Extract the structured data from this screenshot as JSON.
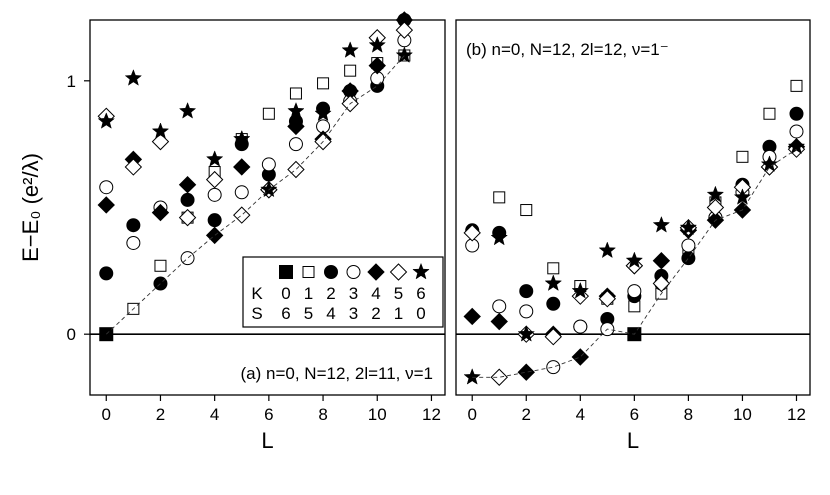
{
  "chart_data": [
    {
      "type": "scatter",
      "panel_label": "(a) n=0, N=12, 2l=11, ν=1",
      "xlabel": "L",
      "ylabel": "E−E₀ (e²/λ)",
      "xlim": [
        -0.6,
        12.5
      ],
      "ylim": [
        -0.24,
        1.24
      ],
      "xticks": [
        "0",
        "2",
        "4",
        "6",
        "8",
        "10",
        "12"
      ],
      "yticks": [
        "0",
        "1"
      ],
      "legend": {
        "placement": "lower-right",
        "K_label": "K",
        "S_label": "S",
        "K_values": [
          "0",
          "1",
          "2",
          "3",
          "4",
          "5",
          "6"
        ],
        "S_values": [
          "6",
          "5",
          "4",
          "3",
          "2",
          "1",
          "0"
        ]
      },
      "series": [
        {
          "marker": "filled-square",
          "K": 0,
          "points": [
            [
              0,
              0.0
            ]
          ]
        },
        {
          "marker": "open-square",
          "K": 1,
          "points": [
            [
              1,
              0.1
            ],
            [
              2,
              0.27
            ],
            [
              3,
              0.46
            ],
            [
              4,
              0.64
            ],
            [
              5,
              0.77
            ],
            [
              6,
              0.87
            ],
            [
              7,
              0.95
            ],
            [
              8,
              0.99
            ],
            [
              9,
              1.04
            ],
            [
              10,
              1.07
            ],
            [
              11,
              1.1
            ]
          ]
        },
        {
          "marker": "filled-circle",
          "K": 2,
          "points": [
            [
              0,
              0.24
            ],
            [
              1,
              0.43
            ],
            [
              2,
              0.2
            ],
            [
              3,
              0.53
            ],
            [
              4,
              0.45
            ],
            [
              5,
              0.75
            ],
            [
              6,
              0.63
            ],
            [
              7,
              0.84
            ],
            [
              8,
              0.89
            ],
            [
              9,
              0.96
            ],
            [
              10,
              0.98
            ],
            [
              11,
              1.24
            ]
          ]
        },
        {
          "marker": "open-circle",
          "K": 3,
          "points": [
            [
              0,
              0.58
            ],
            [
              1,
              0.36
            ],
            [
              2,
              0.5
            ],
            [
              3,
              0.3
            ],
            [
              4,
              0.55
            ],
            [
              5,
              0.56
            ],
            [
              6,
              0.67
            ],
            [
              7,
              0.75
            ],
            [
              8,
              0.82
            ],
            [
              9,
              0.92
            ],
            [
              10,
              1.01
            ],
            [
              11,
              1.16
            ]
          ]
        },
        {
          "marker": "filled-diamond",
          "K": 4,
          "points": [
            [
              0,
              0.51
            ],
            [
              1,
              0.69
            ],
            [
              2,
              0.48
            ],
            [
              3,
              0.59
            ],
            [
              4,
              0.39
            ],
            [
              5,
              0.66
            ],
            [
              6,
              0.57
            ],
            [
              7,
              0.82
            ],
            [
              8,
              0.77
            ],
            [
              9,
              0.96
            ],
            [
              10,
              1.06
            ],
            [
              11,
              1.24
            ]
          ]
        },
        {
          "marker": "open-diamond",
          "K": 5,
          "points": [
            [
              0,
              0.86
            ],
            [
              1,
              0.66
            ],
            [
              2,
              0.76
            ],
            [
              3,
              0.46
            ],
            [
              4,
              0.61
            ],
            [
              5,
              0.47
            ],
            [
              6,
              0.57
            ],
            [
              7,
              0.65
            ],
            [
              8,
              0.76
            ],
            [
              9,
              0.91
            ],
            [
              10,
              1.17
            ],
            [
              11,
              1.2
            ]
          ]
        },
        {
          "marker": "star",
          "K": 6,
          "points": [
            [
              0,
              0.84
            ],
            [
              1,
              1.01
            ],
            [
              2,
              0.8
            ],
            [
              3,
              0.88
            ],
            [
              4,
              0.69
            ],
            [
              5,
              0.77
            ],
            [
              6,
              0.57
            ],
            [
              7,
              0.88
            ],
            [
              8,
              0.87
            ],
            [
              9,
              1.12
            ],
            [
              10,
              1.14
            ],
            [
              11,
              1.1
            ]
          ]
        }
      ]
    },
    {
      "type": "scatter",
      "panel_label": "(b) n=0, N=12, 2l=12, ν=1⁻",
      "xlabel": "L",
      "xlim": [
        -0.6,
        12.5
      ],
      "ylim": [
        -0.24,
        1.24
      ],
      "xticks": [
        "0",
        "2",
        "4",
        "6",
        "8",
        "10",
        "12"
      ],
      "series": [
        {
          "marker": "filled-square",
          "K": 0,
          "points": [
            [
              6,
              0.0
            ]
          ]
        },
        {
          "marker": "open-square",
          "K": 1,
          "points": [
            [
              1,
              0.54
            ],
            [
              2,
              0.49
            ],
            [
              3,
              0.26
            ],
            [
              4,
              0.19
            ],
            [
              5,
              0.14
            ],
            [
              6,
              0.11
            ],
            [
              7,
              0.16
            ],
            [
              8,
              0.33
            ],
            [
              9,
              0.52
            ],
            [
              10,
              0.7
            ],
            [
              11,
              0.87
            ],
            [
              12,
              0.98
            ]
          ]
        },
        {
          "marker": "filled-circle",
          "K": 2,
          "points": [
            [
              0,
              0.41
            ],
            [
              1,
              0.4
            ],
            [
              2,
              0.17
            ],
            [
              3,
              0.12
            ],
            [
              4,
              0.03
            ],
            [
              5,
              0.06
            ],
            [
              6,
              0.15
            ],
            [
              7,
              0.23
            ],
            [
              8,
              0.3
            ],
            [
              9,
              0.46
            ],
            [
              10,
              0.59
            ],
            [
              11,
              0.74
            ],
            [
              12,
              0.87
            ]
          ]
        },
        {
          "marker": "open-circle",
          "K": 3,
          "points": [
            [
              0,
              0.35
            ],
            [
              1,
              0.11
            ],
            [
              2,
              0.09
            ],
            [
              3,
              -0.13
            ],
            [
              4,
              0.03
            ],
            [
              5,
              0.02
            ],
            [
              6,
              0.17
            ],
            [
              7,
              0.2
            ],
            [
              8,
              0.35
            ],
            [
              9,
              0.46
            ],
            [
              10,
              0.56
            ],
            [
              11,
              0.7
            ],
            [
              12,
              0.8
            ]
          ]
        },
        {
          "marker": "filled-diamond",
          "K": 4,
          "points": [
            [
              0,
              0.07
            ],
            [
              1,
              0.05
            ],
            [
              2,
              -0.15
            ],
            [
              3,
              0.0
            ],
            [
              4,
              -0.09
            ],
            [
              5,
              0.15
            ],
            [
              6,
              0.27
            ],
            [
              7,
              0.29
            ],
            [
              8,
              0.41
            ],
            [
              9,
              0.45
            ],
            [
              10,
              0.49
            ],
            [
              11,
              0.66
            ],
            [
              12,
              0.74
            ]
          ]
        },
        {
          "marker": "open-diamond",
          "K": 5,
          "points": [
            [
              0,
              0.4
            ],
            [
              1,
              -0.17
            ],
            [
              2,
              0.0
            ],
            [
              3,
              -0.01
            ],
            [
              4,
              0.15
            ],
            [
              5,
              0.14
            ],
            [
              6,
              0.27
            ],
            [
              7,
              0.2
            ],
            [
              8,
              0.42
            ],
            [
              9,
              0.5
            ],
            [
              10,
              0.58
            ],
            [
              11,
              0.66
            ],
            [
              12,
              0.73
            ]
          ]
        },
        {
          "marker": "star",
          "K": 6,
          "points": [
            [
              0,
              -0.17
            ],
            [
              1,
              0.38
            ],
            [
              2,
              0.0
            ],
            [
              3,
              0.2
            ],
            [
              4,
              0.17
            ],
            [
              5,
              0.33
            ],
            [
              6,
              0.29
            ],
            [
              7,
              0.43
            ],
            [
              8,
              0.42
            ],
            [
              9,
              0.55
            ],
            [
              10,
              0.54
            ],
            [
              11,
              0.67
            ],
            [
              12,
              0.74
            ]
          ]
        }
      ]
    }
  ]
}
